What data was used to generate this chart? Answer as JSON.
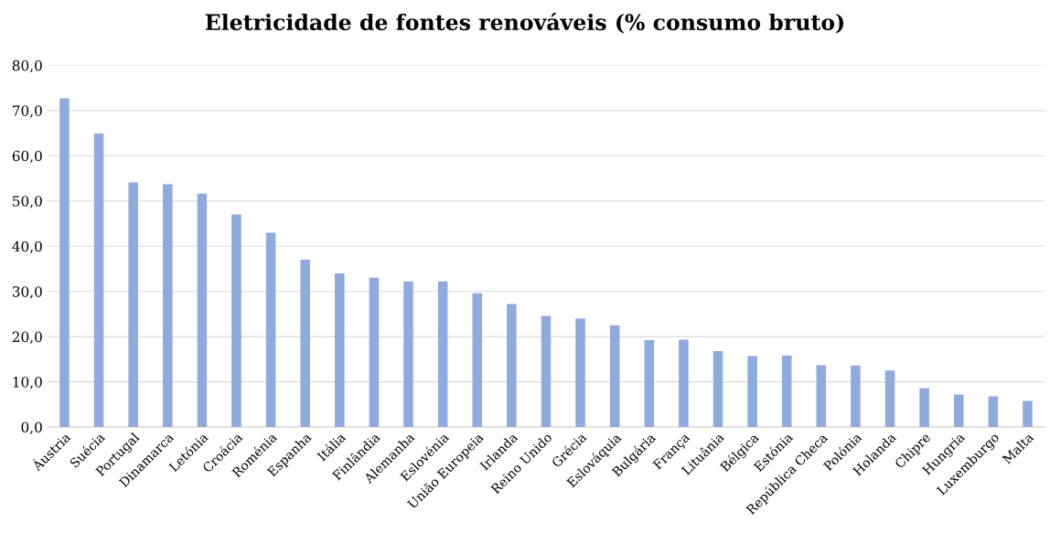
{
  "chart_data": {
    "type": "bar",
    "title": "Eletricidade de fontes renováveis (% consumo bruto)",
    "categories": [
      "Áustria",
      "Suécia",
      "Portugal",
      "Dinamarca",
      "Letónia",
      "Croácia",
      "Roménia",
      "Espanha",
      "Itália",
      "Finlândia",
      "Alemanha",
      "Eslovénia",
      "União Europeia",
      "Irlanda",
      "Reino Unido",
      "Grécia",
      "Eslováquia",
      "Bulgária",
      "França",
      "Lituânia",
      "Bélgica",
      "Estónia",
      "República Checa",
      "Polónia",
      "Holanda",
      "Chipre",
      "Hungria",
      "Luxemburgo",
      "Malta"
    ],
    "values": [
      72.7,
      64.9,
      54.1,
      53.7,
      51.6,
      47.0,
      43.0,
      37.0,
      34.0,
      33.0,
      32.2,
      32.2,
      29.6,
      27.2,
      24.6,
      24.0,
      22.5,
      19.2,
      19.3,
      16.8,
      15.7,
      15.8,
      13.7,
      13.6,
      12.5,
      8.6,
      7.2,
      6.8,
      5.8
    ],
    "color": "#8faadc",
    "ylim": [
      0,
      80
    ],
    "yticks": [
      {
        "value": 0,
        "label": "0,0"
      },
      {
        "value": 10,
        "label": "10,0"
      },
      {
        "value": 20,
        "label": "20,0"
      },
      {
        "value": 30,
        "label": "30,0"
      },
      {
        "value": 40,
        "label": "40,0"
      },
      {
        "value": 50,
        "label": "50,0"
      },
      {
        "value": 60,
        "label": "60,0"
      },
      {
        "value": 70,
        "label": "70,0"
      },
      {
        "value": 80,
        "label": "80,0"
      }
    ],
    "grid": "y"
  }
}
